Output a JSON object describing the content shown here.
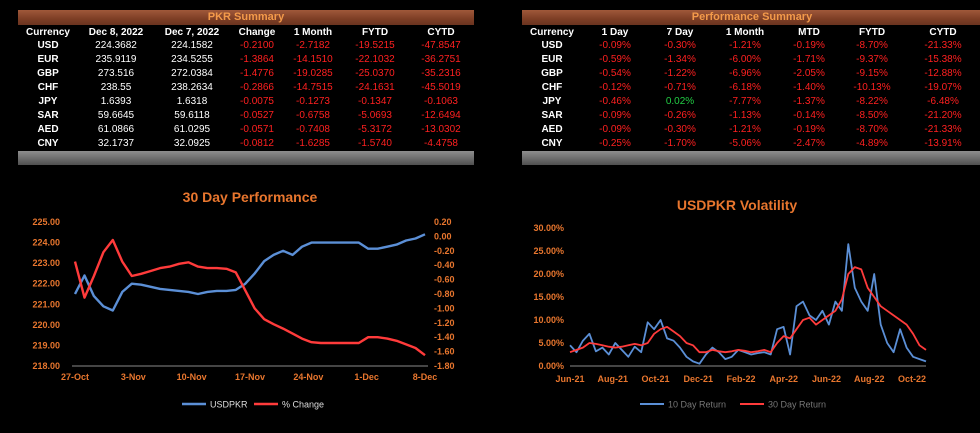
{
  "pkr_summary": {
    "title": "PKR Summary",
    "headers": [
      "Currency",
      "Dec 8, 2022",
      "Dec 7, 2022",
      "Change",
      "1 Month",
      "FYTD",
      "CYTD"
    ],
    "rows": [
      [
        "USD",
        "224.3682",
        "224.1582",
        "-0.2100",
        "-2.7182",
        "-19.5215",
        "-47.8547"
      ],
      [
        "EUR",
        "235.9119",
        "234.5255",
        "-1.3864",
        "-14.1510",
        "-22.1032",
        "-36.2751"
      ],
      [
        "GBP",
        "273.516",
        "272.0384",
        "-1.4776",
        "-19.0285",
        "-25.0370",
        "-35.2316"
      ],
      [
        "CHF",
        "238.55",
        "238.2634",
        "-0.2866",
        "-14.7515",
        "-24.1631",
        "-45.5019"
      ],
      [
        "JPY",
        "1.6393",
        "1.6318",
        "-0.0075",
        "-0.1273",
        "-0.1347",
        "-0.1063"
      ],
      [
        "SAR",
        "59.6645",
        "59.6118",
        "-0.0527",
        "-0.6758",
        "-5.0693",
        "-12.6494"
      ],
      [
        "AED",
        "61.0866",
        "61.0295",
        "-0.0571",
        "-0.7408",
        "-5.3172",
        "-13.0302"
      ],
      [
        "CNY",
        "32.1737",
        "32.0925",
        "-0.0812",
        "-1.6285",
        "-1.5740",
        "-4.4758"
      ]
    ]
  },
  "performance_summary": {
    "title": "Performance Summary",
    "headers": [
      "Currency",
      "1 Day",
      "7 Day",
      "1 Month",
      "MTD",
      "FYTD",
      "CYTD"
    ],
    "rows": [
      [
        "USD",
        "-0.09%",
        "-0.30%",
        "-1.21%",
        "-0.19%",
        "-8.70%",
        "-21.33%"
      ],
      [
        "EUR",
        "-0.59%",
        "-1.34%",
        "-6.00%",
        "-1.71%",
        "-9.37%",
        "-15.38%"
      ],
      [
        "GBP",
        "-0.54%",
        "-1.22%",
        "-6.96%",
        "-2.05%",
        "-9.15%",
        "-12.88%"
      ],
      [
        "CHF",
        "-0.12%",
        "-0.71%",
        "-6.18%",
        "-1.40%",
        "-10.13%",
        "-19.07%"
      ],
      [
        "JPY",
        "-0.46%",
        "0.02%",
        "-7.77%",
        "-1.37%",
        "-8.22%",
        "-6.48%"
      ],
      [
        "SAR",
        "-0.09%",
        "-0.26%",
        "-1.13%",
        "-0.14%",
        "-8.50%",
        "-21.20%"
      ],
      [
        "AED",
        "-0.09%",
        "-0.30%",
        "-1.21%",
        "-0.19%",
        "-8.70%",
        "-21.33%"
      ],
      [
        "CNY",
        "-0.25%",
        "-1.70%",
        "-5.06%",
        "-2.47%",
        "-4.89%",
        "-13.91%"
      ]
    ]
  },
  "colors": {
    "blue": "#5b8fd6",
    "red": "#ff3b3b",
    "orange": "#e8762e",
    "neg": "#ff2020",
    "pos": "#22cc44"
  },
  "chart_data": [
    {
      "type": "line",
      "title": "30 Day Performance",
      "x_ticks": [
        "27-Oct",
        "3-Nov",
        "10-Nov",
        "17-Nov",
        "24-Nov",
        "1-Dec",
        "8-Dec"
      ],
      "y_left_ticks": [
        "225.00",
        "224.00",
        "223.00",
        "222.00",
        "221.00",
        "220.00",
        "219.00",
        "218.00"
      ],
      "y_right_ticks": [
        "0.20",
        "0.00",
        "-0.20",
        "-0.40",
        "-0.60",
        "-0.80",
        "-1.00",
        "-1.20",
        "-1.40",
        "-1.60",
        "-1.80"
      ],
      "ylim_left": [
        218,
        225
      ],
      "ylim_right": [
        -1.8,
        0.2
      ],
      "series": [
        {
          "name": "USDPKR",
          "axis": "left",
          "color": "#5b8fd6",
          "values": [
            221.5,
            222.4,
            221.4,
            220.9,
            220.7,
            221.6,
            222.0,
            221.95,
            221.85,
            221.75,
            221.7,
            221.65,
            221.6,
            221.5,
            221.6,
            221.65,
            221.65,
            221.7,
            222.0,
            222.5,
            223.1,
            223.4,
            223.6,
            223.4,
            223.8,
            224.0,
            224.0,
            224.0,
            224.0,
            224.0,
            224.0,
            223.7,
            223.7,
            223.8,
            223.9,
            224.1,
            224.2,
            224.4
          ]
        },
        {
          "name": "% Change",
          "axis": "right",
          "color": "#ff3b3b",
          "values": [
            -0.35,
            -0.85,
            -0.55,
            -0.22,
            -0.05,
            -0.35,
            -0.55,
            -0.52,
            -0.48,
            -0.44,
            -0.42,
            -0.38,
            -0.36,
            -0.42,
            -0.44,
            -0.44,
            -0.45,
            -0.5,
            -0.75,
            -1.0,
            -1.15,
            -1.22,
            -1.28,
            -1.35,
            -1.42,
            -1.47,
            -1.48,
            -1.48,
            -1.48,
            -1.48,
            -1.48,
            -1.4,
            -1.4,
            -1.42,
            -1.45,
            -1.5,
            -1.55,
            -1.65
          ]
        }
      ],
      "legend": "bottom"
    },
    {
      "type": "line",
      "title": "USDPKR Volatility",
      "x_ticks": [
        "Jun-21",
        "Aug-21",
        "Oct-21",
        "Dec-21",
        "Feb-22",
        "Apr-22",
        "Jun-22",
        "Aug-22",
        "Oct-22"
      ],
      "y_ticks": [
        "30.00%",
        "25.00%",
        "20.00%",
        "15.00%",
        "10.00%",
        "5.00%",
        "0.00%"
      ],
      "ylim": [
        0,
        30
      ],
      "series": [
        {
          "name": "10 Day Return",
          "color": "#5b8fd6",
          "values": [
            4.5,
            3.0,
            5.5,
            7.0,
            3.2,
            4.0,
            2.5,
            5.0,
            3.5,
            2.0,
            4.2,
            3.0,
            9.5,
            8.0,
            10.0,
            6.0,
            5.5,
            4.0,
            2.0,
            1.0,
            0.5,
            2.5,
            4.0,
            3.0,
            1.5,
            2.0,
            3.5,
            3.0,
            2.5,
            2.8,
            3.0,
            2.5,
            8.0,
            8.5,
            2.5,
            13.0,
            14.0,
            11.0,
            10.0,
            12.0,
            9.0,
            14.0,
            12.0,
            26.5,
            17.0,
            14.0,
            12.0,
            20.0,
            9.0,
            5.0,
            3.0,
            8.0,
            4.0,
            2.0,
            1.5,
            1.0
          ]
        },
        {
          "name": "30 Day Return",
          "color": "#ff3b3b",
          "values": [
            3.0,
            3.5,
            4.0,
            5.0,
            4.8,
            4.5,
            4.2,
            4.0,
            4.2,
            4.5,
            4.8,
            4.5,
            5.0,
            7.0,
            8.0,
            8.5,
            7.5,
            6.5,
            5.0,
            4.5,
            3.0,
            3.0,
            3.5,
            3.2,
            3.0,
            3.2,
            3.5,
            3.3,
            3.0,
            3.2,
            3.5,
            3.0,
            5.0,
            6.5,
            6.0,
            8.0,
            10.0,
            10.5,
            9.0,
            10.0,
            11.0,
            12.0,
            14.5,
            20.0,
            21.5,
            21.0,
            17.0,
            15.0,
            13.0,
            12.0,
            11.0,
            10.0,
            9.0,
            7.0,
            4.5,
            3.5
          ]
        }
      ],
      "legend": "bottom"
    }
  ]
}
